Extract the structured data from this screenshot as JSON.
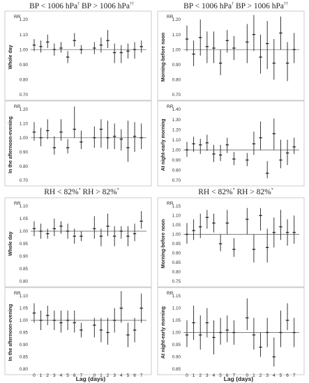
{
  "figure": {
    "headers": [
      {
        "left": "BP < 1006 hPa",
        "left_sym": "†",
        "right": "BP > 1006 hPa",
        "right_sym": "††"
      },
      {
        "left": "BP < 1006 hPa",
        "left_sym": "†",
        "right": "BP > 1006 hPa",
        "right_sym": "††"
      },
      {
        "left": "RH < 82%",
        "left_sym": "*",
        "right": "RH > 82%",
        "right_sym": "*"
      },
      {
        "left": "RH < 82%",
        "left_sym": "*",
        "right": "RH > 82%",
        "right_sym": "*"
      }
    ],
    "xlabel": "Lag (days)",
    "x_ticks": [
      "0",
      "1",
      "2",
      "3",
      "4",
      "5",
      "6",
      "7",
      "0",
      "1",
      "2",
      "3",
      "4",
      "5",
      "6",
      "7"
    ]
  },
  "chart_data": [
    {
      "type": "scatter",
      "panel": "BP, left, top",
      "rr_label": "RR",
      "ylabel": "Whole day",
      "ylim": [
        0.7,
        1.2
      ],
      "yticks": [
        "0.70",
        "0.80",
        "0.90",
        "1.00",
        "1.10",
        "1.20"
      ],
      "show_x_ticks": false,
      "low_group": {
        "est": [
          1.03,
          1.02,
          1.05,
          1.0,
          1.01,
          0.95,
          1.06,
          1.0
        ],
        "lo": [
          0.99,
          0.98,
          1.01,
          0.96,
          0.98,
          0.91,
          1.02,
          0.97
        ],
        "hi": [
          1.07,
          1.06,
          1.1,
          1.04,
          1.05,
          0.99,
          1.11,
          1.03
        ]
      },
      "high_group": {
        "est": [
          1.01,
          1.03,
          1.06,
          0.98,
          0.98,
          0.99,
          1.0,
          1.02
        ],
        "lo": [
          0.97,
          0.98,
          1.01,
          0.91,
          0.91,
          0.94,
          0.94,
          0.98
        ],
        "hi": [
          1.05,
          1.08,
          1.13,
          1.04,
          1.03,
          1.04,
          1.05,
          1.06
        ]
      }
    },
    {
      "type": "scatter",
      "panel": "BP, left, bottom",
      "rr_label": "RR",
      "ylabel": "In the afternoon-evening",
      "ylim": [
        0.7,
        1.2
      ],
      "yticks": [
        "0.70",
        "0.80",
        "0.90",
        "1.00",
        "1.10",
        "1.20"
      ],
      "show_x_ticks": false,
      "low_group": {
        "est": [
          1.04,
          1.0,
          1.05,
          0.93,
          1.04,
          0.93,
          1.06,
          0.97
        ],
        "lo": [
          0.98,
          0.94,
          0.99,
          0.88,
          0.98,
          0.89,
          1.0,
          0.92
        ],
        "hi": [
          1.11,
          1.07,
          1.13,
          1.01,
          1.13,
          0.99,
          1.22,
          1.05
        ]
      },
      "high_group": {
        "est": [
          1.0,
          1.06,
          1.0,
          1.01,
          0.99,
          0.93,
          1.01,
          1.0
        ],
        "lo": [
          0.93,
          0.93,
          0.92,
          0.92,
          0.91,
          0.83,
          0.9,
          0.92
        ],
        "hi": [
          1.08,
          1.13,
          1.12,
          1.1,
          1.06,
          1.12,
          1.11,
          1.1
        ]
      }
    },
    {
      "type": "scatter",
      "panel": "BP, right, top",
      "rr_label": "RR",
      "ylabel": "Morning-before noon",
      "ylim": [
        0.7,
        1.2
      ],
      "yticks": [
        "0.70",
        "0.80",
        "0.90",
        "1.00",
        "1.10",
        "1.20"
      ],
      "show_x_ticks": false,
      "low_group": {
        "est": [
          1.07,
          0.97,
          1.08,
          1.02,
          1.01,
          0.91,
          1.06,
          1.01
        ],
        "lo": [
          0.99,
          0.89,
          0.96,
          0.91,
          0.91,
          0.83,
          0.98,
          0.93
        ],
        "hi": [
          1.16,
          1.06,
          1.2,
          1.12,
          1.12,
          1.0,
          1.13,
          1.09
        ]
      },
      "high_group": {
        "est": [
          1.05,
          1.1,
          0.95,
          1.04,
          0.91,
          1.11,
          0.91,
          1.0
        ],
        "lo": [
          0.91,
          0.99,
          0.84,
          0.87,
          0.8,
          1.0,
          0.79,
          0.91
        ],
        "hi": [
          1.17,
          1.23,
          1.1,
          1.19,
          1.07,
          1.22,
          1.05,
          1.11
        ]
      }
    },
    {
      "type": "scatter",
      "panel": "BP, right, bottom",
      "rr_label": "RR",
      "ylabel": "At night-early morning",
      "ylim": [
        0.7,
        1.4
      ],
      "yticks": [
        "0.70",
        "0.80",
        "0.90",
        "1.00",
        "1.10",
        "1.20",
        "1.30",
        "1.40"
      ],
      "show_x_ticks": false,
      "low_group": {
        "est": [
          1.0,
          1.06,
          1.05,
          1.07,
          0.96,
          0.95,
          1.05,
          0.91
        ],
        "lo": [
          0.93,
          0.98,
          0.96,
          0.99,
          0.88,
          0.89,
          0.97,
          0.85
        ],
        "hi": [
          1.08,
          1.13,
          1.11,
          1.15,
          1.05,
          1.05,
          1.12,
          0.98
        ]
      },
      "high_group": {
        "est": [
          0.9,
          1.06,
          1.12,
          0.77,
          1.16,
          0.9,
          0.97,
          1.03
        ],
        "lo": [
          0.84,
          0.95,
          1.0,
          0.72,
          1.0,
          0.82,
          0.85,
          0.96
        ],
        "hi": [
          0.97,
          1.18,
          1.28,
          0.89,
          1.31,
          1.1,
          1.1,
          1.12
        ]
      }
    },
    {
      "type": "scatter",
      "panel": "RH, left, top",
      "rr_label": "RR",
      "ylabel": "Whole day",
      "ylim": [
        0.8,
        1.1
      ],
      "yticks": [
        "0.80",
        "0.85",
        "0.90",
        "0.95",
        "1.00",
        "1.05",
        "1.10"
      ],
      "show_x_ticks": false,
      "low_group": {
        "est": [
          1.01,
          1.0,
          0.99,
          1.01,
          1.02,
          1.0,
          0.98,
          0.98
        ],
        "lo": [
          0.98,
          0.97,
          0.97,
          0.98,
          0.99,
          0.97,
          0.95,
          0.96
        ],
        "hi": [
          1.04,
          1.03,
          1.01,
          1.05,
          1.04,
          1.03,
          1.01,
          1.0
        ]
      },
      "high_group": {
        "est": [
          1.01,
          0.98,
          1.02,
          0.98,
          1.0,
          0.98,
          0.99,
          1.04
        ],
        "lo": [
          0.97,
          0.94,
          0.98,
          0.94,
          0.97,
          0.94,
          0.96,
          1.01
        ],
        "hi": [
          1.06,
          1.01,
          1.07,
          1.02,
          1.02,
          1.02,
          1.03,
          1.08
        ]
      }
    },
    {
      "type": "scatter",
      "panel": "RH, left, bottom",
      "rr_label": "RR",
      "ylabel": "In the afternoon-evening",
      "ylim": [
        0.8,
        1.1
      ],
      "yticks": [
        "0.80",
        "0.85",
        "0.90",
        "0.95",
        "1.00",
        "1.05",
        "1.10"
      ],
      "show_x_ticks": true,
      "low_group": {
        "est": [
          1.03,
          1.0,
          1.02,
          1.0,
          0.99,
          1.0,
          0.99,
          0.96
        ],
        "lo": [
          0.99,
          0.96,
          0.98,
          0.96,
          0.95,
          0.96,
          0.95,
          0.93
        ],
        "hi": [
          1.07,
          1.04,
          1.06,
          1.04,
          1.04,
          1.04,
          1.04,
          0.99
        ]
      },
      "high_group": {
        "est": [
          0.98,
          0.96,
          0.95,
          1.0,
          1.05,
          0.94,
          0.96,
          1.05
        ],
        "lo": [
          0.93,
          0.91,
          0.9,
          0.95,
          0.99,
          0.89,
          0.91,
          0.99
        ],
        "hi": [
          1.01,
          1.01,
          1.01,
          1.05,
          1.12,
          0.99,
          1.01,
          1.11
        ]
      }
    },
    {
      "type": "scatter",
      "panel": "RH, right, top",
      "rr_label": "RR",
      "ylabel": "Morning-before noon",
      "ylim": [
        0.75,
        1.15
      ],
      "yticks": [
        "0.75",
        "0.80",
        "0.85",
        "0.90",
        "0.95",
        "1.00",
        "1.05",
        "1.10",
        "1.15"
      ],
      "show_x_ticks": false,
      "low_group": {
        "est": [
          1.0,
          1.02,
          1.04,
          1.09,
          1.06,
          0.95,
          1.06,
          0.92
        ],
        "lo": [
          0.95,
          0.97,
          0.98,
          1.03,
          1.01,
          0.91,
          1.0,
          0.88
        ],
        "hi": [
          1.06,
          1.08,
          1.11,
          1.13,
          1.11,
          1.0,
          1.13,
          0.98
        ]
      },
      "high_group": {
        "est": [
          1.08,
          0.92,
          1.1,
          0.93,
          1.01,
          1.04,
          1.01,
          1.01
        ],
        "lo": [
          1.0,
          0.85,
          1.02,
          0.85,
          0.93,
          0.97,
          0.94,
          0.95
        ],
        "hi": [
          1.14,
          1.0,
          1.14,
          1.03,
          1.09,
          1.13,
          1.08,
          1.1
        ]
      }
    },
    {
      "type": "scatter",
      "panel": "RH, right, bottom",
      "rr_label": "RR",
      "ylabel": "At night-early morning",
      "ylim": [
        0.85,
        1.15
      ],
      "yticks": [
        "0.85",
        "0.90",
        "0.95",
        "1.00",
        "1.05",
        "1.10",
        "1.15"
      ],
      "show_x_ticks": true,
      "low_group": {
        "est": [
          0.99,
          1.04,
          0.99,
          1.04,
          0.98,
          1.0,
          1.01,
          1.0
        ],
        "lo": [
          0.94,
          0.97,
          0.93,
          0.98,
          0.91,
          0.95,
          0.96,
          0.95
        ],
        "hi": [
          1.05,
          1.11,
          1.07,
          1.1,
          1.05,
          1.06,
          1.07,
          1.05
        ]
      },
      "high_group": {
        "est": [
          1.06,
          0.99,
          0.94,
          1.0,
          0.9,
          1.0,
          1.05,
          1.0
        ],
        "lo": [
          1.01,
          0.93,
          0.9,
          0.94,
          0.86,
          0.94,
          1.01,
          0.94
        ],
        "hi": [
          1.14,
          1.06,
          1.0,
          1.06,
          0.98,
          1.09,
          1.12,
          1.06
        ]
      }
    }
  ]
}
